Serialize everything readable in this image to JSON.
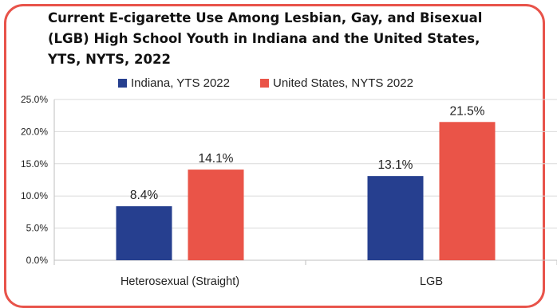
{
  "colors": {
    "frame": "#e8534a",
    "indiana": "#263f8f",
    "us": "#ea5448",
    "grid": "#d9d9d9"
  },
  "chart_data": {
    "type": "bar",
    "title": "Current E-cigarette Use Among Lesbian, Gay, and Bisexual (LGB) High School Youth in Indiana and the United States, YTS, NYTS, 2022",
    "title_lines": [
      "Current E-cigarette Use Among Lesbian, Gay, and Bisexual",
      "(LGB) High School Youth in Indiana and the United States,",
      "YTS, NYTS, 2022"
    ],
    "categories": [
      "Heterosexual (Straight)",
      "LGB"
    ],
    "series": [
      {
        "name": "Indiana, YTS 2022",
        "values": [
          8.4,
          13.1
        ],
        "labels": [
          "8.4%",
          "13.1%"
        ]
      },
      {
        "name": "United States, NYTS 2022",
        "values": [
          14.1,
          21.5
        ],
        "labels": [
          "14.1%",
          "21.5%"
        ]
      }
    ],
    "yticks": [
      "0.0%",
      "5.0%",
      "10.0%",
      "15.0%",
      "20.0%",
      "25.0%"
    ],
    "ylim": [
      0,
      25
    ],
    "grid": true,
    "legend": "top"
  }
}
